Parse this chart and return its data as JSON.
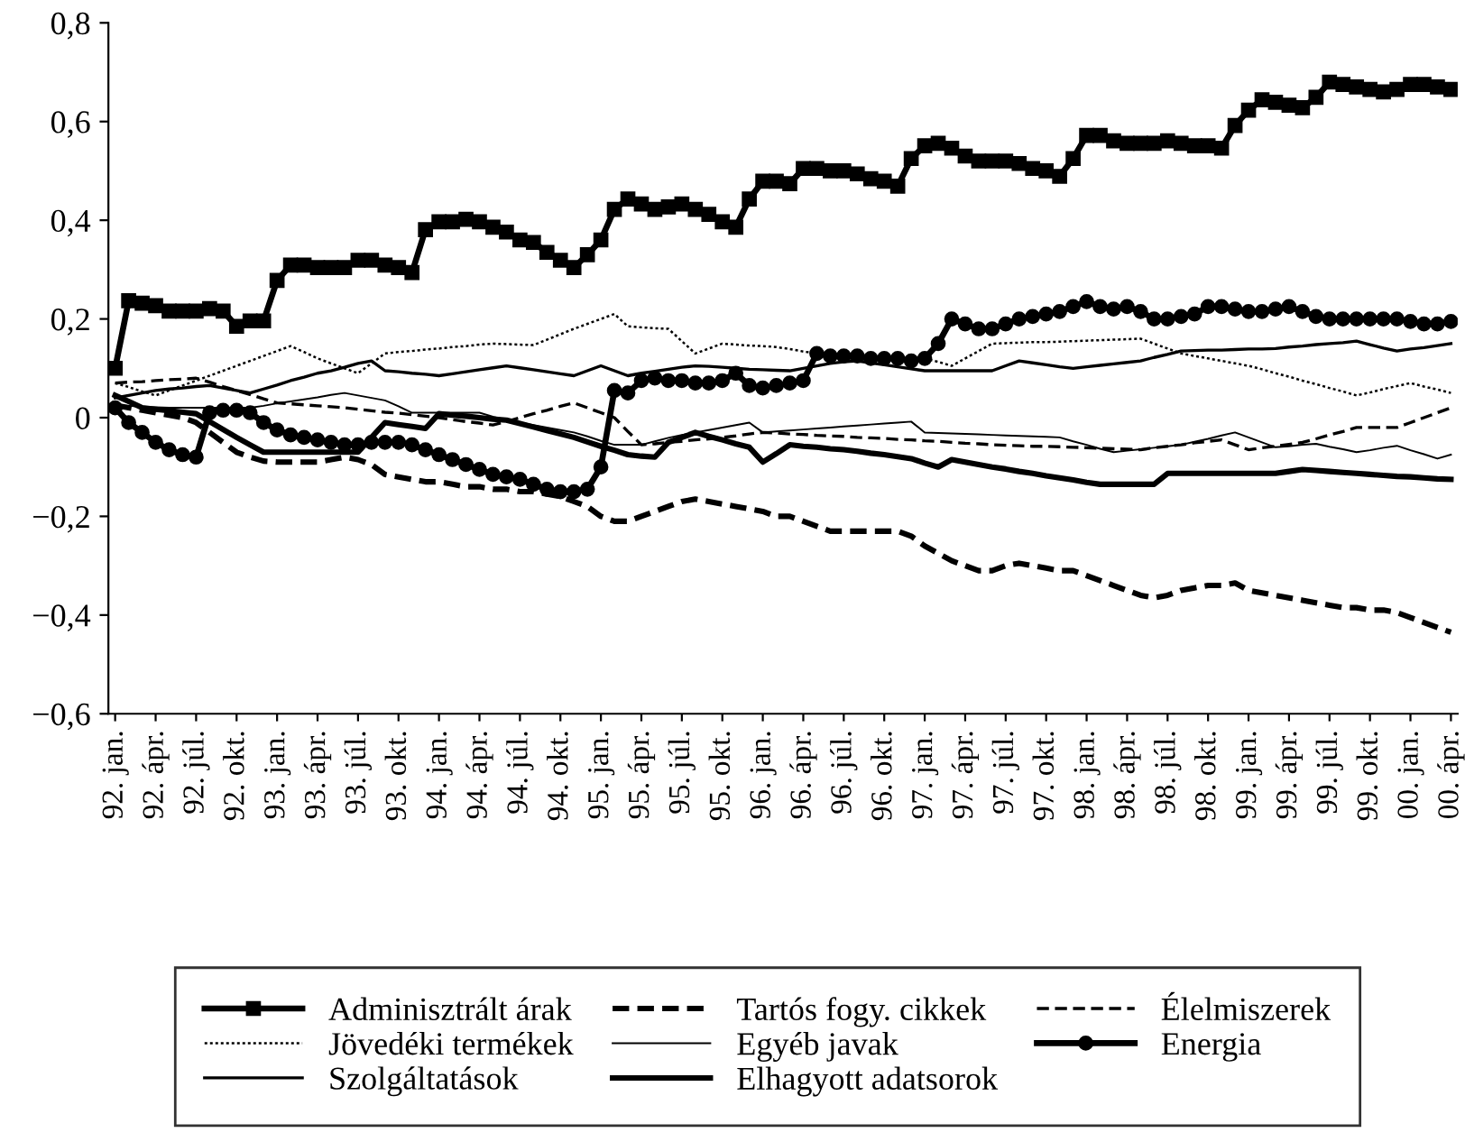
{
  "chart_data": {
    "type": "line",
    "categories": [
      "92. jan.",
      null,
      null,
      "92. ápr.",
      null,
      null,
      "92. júl.",
      null,
      null,
      "92. okt.",
      null,
      null,
      "93. jan.",
      null,
      null,
      "93. ápr.",
      null,
      null,
      "93. júl.",
      null,
      null,
      "93. okt.",
      null,
      null,
      "94. jan.",
      null,
      null,
      "94. ápr.",
      null,
      null,
      "94. júl.",
      null,
      null,
      "94. okt.",
      null,
      null,
      "95. jan.",
      null,
      null,
      "95. ápr.",
      null,
      null,
      "95. júl.",
      null,
      null,
      "95. okt.",
      null,
      null,
      "96. jan.",
      null,
      null,
      "96. ápr.",
      null,
      null,
      "96. júl.",
      null,
      null,
      "96. okt.",
      null,
      null,
      "97. jan.",
      null,
      null,
      "97. ápr.",
      null,
      null,
      "97. júl.",
      null,
      null,
      "97. okt.",
      null,
      null,
      "98. jan.",
      null,
      null,
      "98. ápr.",
      null,
      null,
      "98. júl.",
      null,
      null,
      "98. okt.",
      null,
      null,
      "99. jan.",
      null,
      null,
      "99. ápr.",
      null,
      null,
      "99. júl.",
      null,
      null,
      "99. okt.",
      null,
      null,
      "00. jan.",
      null,
      null,
      "00. ápr."
    ],
    "ylim": [
      -0.6,
      0.8
    ],
    "yticks": [
      {
        "value": -0.6,
        "label": "−0,6"
      },
      {
        "value": -0.4,
        "label": "−0,4"
      },
      {
        "value": -0.2,
        "label": "−0,2"
      },
      0,
      {
        "value": 0.2,
        "label": "0,2"
      },
      {
        "value": 0.4,
        "label": "0,4"
      },
      {
        "value": 0.6,
        "label": "0,6"
      },
      {
        "value": 0.8,
        "label": "0,8"
      }
    ],
    "grid": false,
    "legend": "bottom",
    "series": [
      {
        "name": "Adminisztrált árak",
        "color": "#000000",
        "marker": "square",
        "line_style": "solid",
        "values": [
          0.1,
          0.237,
          0.232,
          0.227,
          0.216,
          0.216,
          0.216,
          0.221,
          0.216,
          0.185,
          0.196,
          0.196,
          0.278,
          0.309,
          0.309,
          0.304,
          0.304,
          0.304,
          0.319,
          0.319,
          0.309,
          0.304,
          0.294,
          0.381,
          0.397,
          0.397,
          0.402,
          0.397,
          0.386,
          0.376,
          0.36,
          0.355,
          0.335,
          0.319,
          0.304,
          0.33,
          0.36,
          0.422,
          0.443,
          0.433,
          0.422,
          0.427,
          0.433,
          0.422,
          0.412,
          0.397,
          0.386,
          0.443,
          0.479,
          0.479,
          0.474,
          0.505,
          0.505,
          0.5,
          0.5,
          0.494,
          0.484,
          0.479,
          0.469,
          0.525,
          0.551,
          0.556,
          0.546,
          0.53,
          0.52,
          0.52,
          0.52,
          0.515,
          0.505,
          0.5,
          0.489,
          0.525,
          0.572,
          0.572,
          0.561,
          0.556,
          0.556,
          0.556,
          0.561,
          0.556,
          0.551,
          0.551,
          0.546,
          0.592,
          0.623,
          0.644,
          0.639,
          0.633,
          0.628,
          0.649,
          0.68,
          0.675,
          0.67,
          0.665,
          0.66,
          0.665,
          0.675,
          0.675,
          0.67,
          0.665
        ]
      },
      {
        "name": "Tartós fogy. cikkek",
        "color": "#000000",
        "marker": "none",
        "line_style": "dashed",
        "values": [
          0.025,
          0.02,
          0.015,
          0.01,
          0.005,
          0,
          -0.01,
          -0.03,
          -0.05,
          -0.07,
          -0.08,
          -0.088,
          -0.09,
          -0.09,
          -0.09,
          -0.09,
          -0.085,
          -0.08,
          -0.085,
          -0.095,
          -0.115,
          -0.12,
          -0.125,
          -0.13,
          -0.13,
          -0.135,
          -0.14,
          -0.14,
          -0.145,
          -0.145,
          -0.15,
          -0.15,
          -0.155,
          -0.16,
          -0.17,
          -0.18,
          -0.2,
          -0.21,
          -0.21,
          -0.2,
          -0.19,
          -0.18,
          -0.17,
          -0.165,
          -0.17,
          -0.175,
          -0.18,
          -0.185,
          -0.19,
          -0.2,
          -0.2,
          -0.21,
          -0.22,
          -0.23,
          -0.23,
          -0.23,
          -0.23,
          -0.23,
          -0.23,
          -0.24,
          -0.26,
          -0.275,
          -0.29,
          -0.3,
          -0.31,
          -0.31,
          -0.3,
          -0.295,
          -0.3,
          -0.305,
          -0.31,
          -0.31,
          -0.32,
          -0.33,
          -0.34,
          -0.35,
          -0.36,
          -0.365,
          -0.36,
          -0.35,
          -0.345,
          -0.34,
          -0.34,
          -0.335,
          -0.35,
          -0.355,
          -0.36,
          -0.365,
          -0.37,
          -0.375,
          -0.38,
          -0.385,
          -0.385,
          -0.39,
          -0.39,
          -0.395,
          -0.405,
          -0.415,
          -0.425,
          -0.435
        ]
      },
      {
        "name": "Élelmiszerek",
        "color": "#000000",
        "marker": "none",
        "line_style": "dashed",
        "values": [
          0.07,
          0.072,
          0.073,
          0.075,
          0.077,
          0.078,
          0.08,
          0.072,
          0.063,
          0.055,
          0.047,
          0.038,
          0.03,
          0.028,
          0.026,
          0.024,
          0.022,
          0.02,
          0.017,
          0.014,
          0.011,
          0.009,
          0.006,
          0.003,
          0,
          -0.004,
          -0.008,
          -0.011,
          -0.015,
          -0.008,
          0,
          0.008,
          0.015,
          0.023,
          0.03,
          0.02,
          0.01,
          0,
          -0.028,
          -0.055,
          -0.053,
          -0.05,
          -0.048,
          -0.045,
          -0.043,
          -0.04,
          -0.037,
          -0.033,
          -0.03,
          -0.031,
          -0.033,
          -0.034,
          -0.036,
          -0.037,
          -0.038,
          -0.04,
          -0.041,
          -0.042,
          -0.044,
          -0.045,
          -0.047,
          -0.048,
          -0.05,
          -0.052,
          -0.053,
          -0.055,
          -0.056,
          -0.057,
          -0.058,
          -0.058,
          -0.059,
          -0.06,
          -0.061,
          -0.062,
          -0.063,
          -0.064,
          -0.065,
          -0.061,
          -0.058,
          -0.055,
          -0.051,
          -0.048,
          -0.045,
          -0.055,
          -0.065,
          -0.061,
          -0.058,
          -0.054,
          -0.05,
          -0.043,
          -0.035,
          -0.028,
          -0.02,
          -0.02,
          -0.02,
          -0.02,
          -0.01,
          0,
          0.01,
          0.02
        ]
      },
      {
        "name": "Jövedéki termékek",
        "color": "#000000",
        "marker": "none",
        "line_style": "dotted",
        "values": [
          0.07,
          0.062,
          0.053,
          0.045,
          0.055,
          0.065,
          0.075,
          0.085,
          0.095,
          0.105,
          0.115,
          0.125,
          0.135,
          0.145,
          0.133,
          0.12,
          0.11,
          0.1,
          0.09,
          0.11,
          0.13,
          0.133,
          0.135,
          0.138,
          0.14,
          0.143,
          0.145,
          0.148,
          0.15,
          0.149,
          0.148,
          0.147,
          0.158,
          0.169,
          0.18,
          0.19,
          0.2,
          0.21,
          0.185,
          0.183,
          0.181,
          0.18,
          0.155,
          0.13,
          0.14,
          0.15,
          0.148,
          0.146,
          0.145,
          0.143,
          0.139,
          0.134,
          0.13,
          0.125,
          0.12,
          0.12,
          0.12,
          0.12,
          0.12,
          0.12,
          0.12,
          0.113,
          0.105,
          0.12,
          0.135,
          0.15,
          0.151,
          0.152,
          0.153,
          0.153,
          0.154,
          0.155,
          0.156,
          0.157,
          0.158,
          0.159,
          0.16,
          0.15,
          0.14,
          0.13,
          0.125,
          0.12,
          0.115,
          0.11,
          0.105,
          0.098,
          0.09,
          0.083,
          0.075,
          0.068,
          0.06,
          0.053,
          0.045,
          0.051,
          0.058,
          0.064,
          0.07,
          0.063,
          0.057,
          0.05
        ]
      },
      {
        "name": "Egyéb javak",
        "color": "#000000",
        "marker": "none",
        "line_style": "solid",
        "values": [
          0.025,
          0.024,
          0.022,
          0.021,
          0.02,
          0.02,
          0.02,
          0.02,
          0.02,
          0.02,
          0.02,
          0.024,
          0.029,
          0.033,
          0.037,
          0.041,
          0.046,
          0.05,
          0.045,
          0.04,
          0.035,
          0.023,
          0.01,
          0.01,
          0.01,
          0.01,
          0.01,
          0.01,
          0.002,
          -0.005,
          -0.01,
          -0.015,
          -0.02,
          -0.025,
          -0.03,
          -0.038,
          -0.047,
          -0.055,
          -0.055,
          -0.055,
          -0.048,
          -0.041,
          -0.035,
          -0.03,
          -0.025,
          -0.02,
          -0.015,
          -0.01,
          -0.03,
          -0.028,
          -0.026,
          -0.024,
          -0.022,
          -0.02,
          -0.018,
          -0.016,
          -0.014,
          -0.012,
          -0.01,
          -0.008,
          -0.03,
          -0.031,
          -0.032,
          -0.033,
          -0.034,
          -0.035,
          -0.036,
          -0.037,
          -0.038,
          -0.039,
          -0.04,
          -0.048,
          -0.055,
          -0.063,
          -0.07,
          -0.067,
          -0.064,
          -0.061,
          -0.058,
          -0.055,
          -0.049,
          -0.043,
          -0.036,
          -0.03,
          -0.04,
          -0.05,
          -0.06,
          -0.058,
          -0.055,
          -0.053,
          -0.059,
          -0.064,
          -0.07,
          -0.066,
          -0.061,
          -0.057,
          -0.066,
          -0.074,
          -0.083,
          -0.075
        ]
      },
      {
        "name": "Energia",
        "color": "#000000",
        "marker": "circle",
        "line_style": "solid",
        "values": [
          0.02,
          -0.01,
          -0.03,
          -0.05,
          -0.065,
          -0.075,
          -0.08,
          0.01,
          0.015,
          0.015,
          0.01,
          -0.01,
          -0.025,
          -0.035,
          -0.04,
          -0.045,
          -0.05,
          -0.055,
          -0.055,
          -0.05,
          -0.05,
          -0.05,
          -0.055,
          -0.065,
          -0.075,
          -0.085,
          -0.095,
          -0.105,
          -0.115,
          -0.12,
          -0.125,
          -0.135,
          -0.145,
          -0.15,
          -0.15,
          -0.145,
          -0.1,
          0.055,
          0.05,
          0.075,
          0.08,
          0.075,
          0.075,
          0.07,
          0.07,
          0.075,
          0.09,
          0.065,
          0.06,
          0.065,
          0.07,
          0.075,
          0.13,
          0.125,
          0.125,
          0.125,
          0.12,
          0.12,
          0.12,
          0.115,
          0.12,
          0.15,
          0.2,
          0.19,
          0.18,
          0.18,
          0.19,
          0.2,
          0.205,
          0.21,
          0.215,
          0.225,
          0.235,
          0.225,
          0.22,
          0.225,
          0.215,
          0.2,
          0.2,
          0.205,
          0.21,
          0.225,
          0.225,
          0.22,
          0.215,
          0.215,
          0.22,
          0.225,
          0.215,
          0.205,
          0.2,
          0.2,
          0.2,
          0.2,
          0.2,
          0.2,
          0.195,
          0.19,
          0.19,
          0.195
        ]
      },
      {
        "name": "Szolgáltatások",
        "color": "#000000",
        "marker": "none",
        "line_style": "solid",
        "values": [
          0.04,
          0.045,
          0.05,
          0.055,
          0.058,
          0.06,
          0.063,
          0.065,
          0.06,
          0.055,
          0.05,
          0.058,
          0.066,
          0.075,
          0.082,
          0.09,
          0.095,
          0.102,
          0.11,
          0.115,
          0.095,
          0.093,
          0.09,
          0.088,
          0.085,
          0.089,
          0.093,
          0.097,
          0.101,
          0.105,
          0.101,
          0.097,
          0.093,
          0.089,
          0.085,
          0.095,
          0.105,
          0.095,
          0.085,
          0.09,
          0.094,
          0.098,
          0.102,
          0.105,
          0.104,
          0.102,
          0.1,
          0.098,
          0.097,
          0.096,
          0.095,
          0.1,
          0.105,
          0.11,
          0.113,
          0.115,
          0.111,
          0.107,
          0.103,
          0.099,
          0.095,
          0.095,
          0.095,
          0.095,
          0.095,
          0.095,
          0.105,
          0.115,
          0.111,
          0.107,
          0.103,
          0.1,
          0.103,
          0.106,
          0.109,
          0.112,
          0.115,
          0.122,
          0.128,
          0.135,
          0.136,
          0.137,
          0.137,
          0.138,
          0.139,
          0.139,
          0.14,
          0.143,
          0.145,
          0.148,
          0.15,
          0.152,
          0.155,
          0.148,
          0.141,
          0.135,
          0.139,
          0.142,
          0.146,
          0.15
        ]
      },
      {
        "name": "Elhagyott adatsorok",
        "color": "#000000",
        "marker": "none",
        "line_style": "solid",
        "values": [
          0.045,
          0.033,
          0.02,
          0.017,
          0.014,
          0.011,
          0.008,
          -0.008,
          -0.024,
          -0.04,
          -0.055,
          -0.07,
          -0.07,
          -0.07,
          -0.07,
          -0.07,
          -0.07,
          -0.07,
          -0.07,
          -0.04,
          -0.01,
          -0.014,
          -0.018,
          -0.022,
          0.008,
          0.005,
          0.003,
          0,
          -0.003,
          -0.005,
          -0.012,
          -0.019,
          -0.026,
          -0.033,
          -0.04,
          -0.049,
          -0.058,
          -0.066,
          -0.075,
          -0.078,
          -0.08,
          -0.05,
          -0.04,
          -0.03,
          -0.038,
          -0.045,
          -0.053,
          -0.06,
          -0.09,
          -0.073,
          -0.055,
          -0.058,
          -0.06,
          -0.063,
          -0.065,
          -0.068,
          -0.072,
          -0.075,
          -0.079,
          -0.083,
          -0.092,
          -0.1,
          -0.085,
          -0.09,
          -0.095,
          -0.1,
          -0.104,
          -0.109,
          -0.113,
          -0.118,
          -0.122,
          -0.126,
          -0.131,
          -0.135,
          -0.135,
          -0.135,
          -0.135,
          -0.135,
          -0.113,
          -0.113,
          -0.113,
          -0.113,
          -0.113,
          -0.113,
          -0.113,
          -0.113,
          -0.113,
          -0.109,
          -0.105,
          -0.107,
          -0.109,
          -0.111,
          -0.113,
          -0.115,
          -0.117,
          -0.119,
          -0.12,
          -0.122,
          -0.124,
          -0.125
        ]
      }
    ]
  }
}
